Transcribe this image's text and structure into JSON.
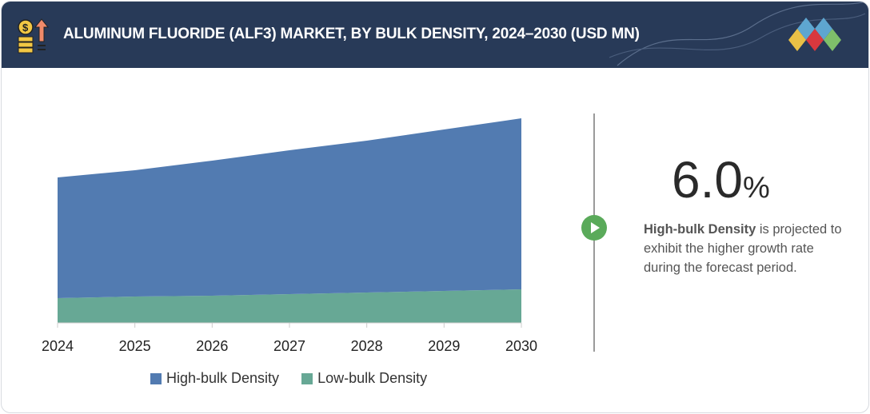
{
  "header": {
    "title": "ALUMINUM FLUORIDE (ALF3) MARKET, BY BULK DENSITY, 2024–2030 (USD MN)"
  },
  "callout": {
    "value": "6.0",
    "unit": "%",
    "bold": "High-bulk Density",
    "text": " is projected to exhibit the higher growth rate during the forecast period."
  },
  "colors": {
    "header": "#283a58",
    "high": "#527bb1",
    "low": "#67a895",
    "accent": "#5aaa5a"
  },
  "chart_data": {
    "type": "area",
    "stacked": true,
    "title": "ALUMINUM FLUORIDE (ALF3) MARKET, BY BULK DENSITY, 2024–2030 (USD MN)",
    "categories": [
      "2024",
      "2025",
      "2026",
      "2027",
      "2028",
      "2029",
      "2030"
    ],
    "series": [
      {
        "name": "Low-bulk Density",
        "color": "#67a895",
        "values": [
          31,
          33,
          34,
          36,
          38,
          40,
          42
        ]
      },
      {
        "name": "High-bulk Density",
        "color": "#527bb1",
        "values": [
          151,
          158,
          169,
          180,
          190,
          202,
          214
        ]
      }
    ],
    "ylim": [
      0,
      256
    ],
    "yaxis_visible": false,
    "grid": false,
    "legend": "bottom"
  }
}
